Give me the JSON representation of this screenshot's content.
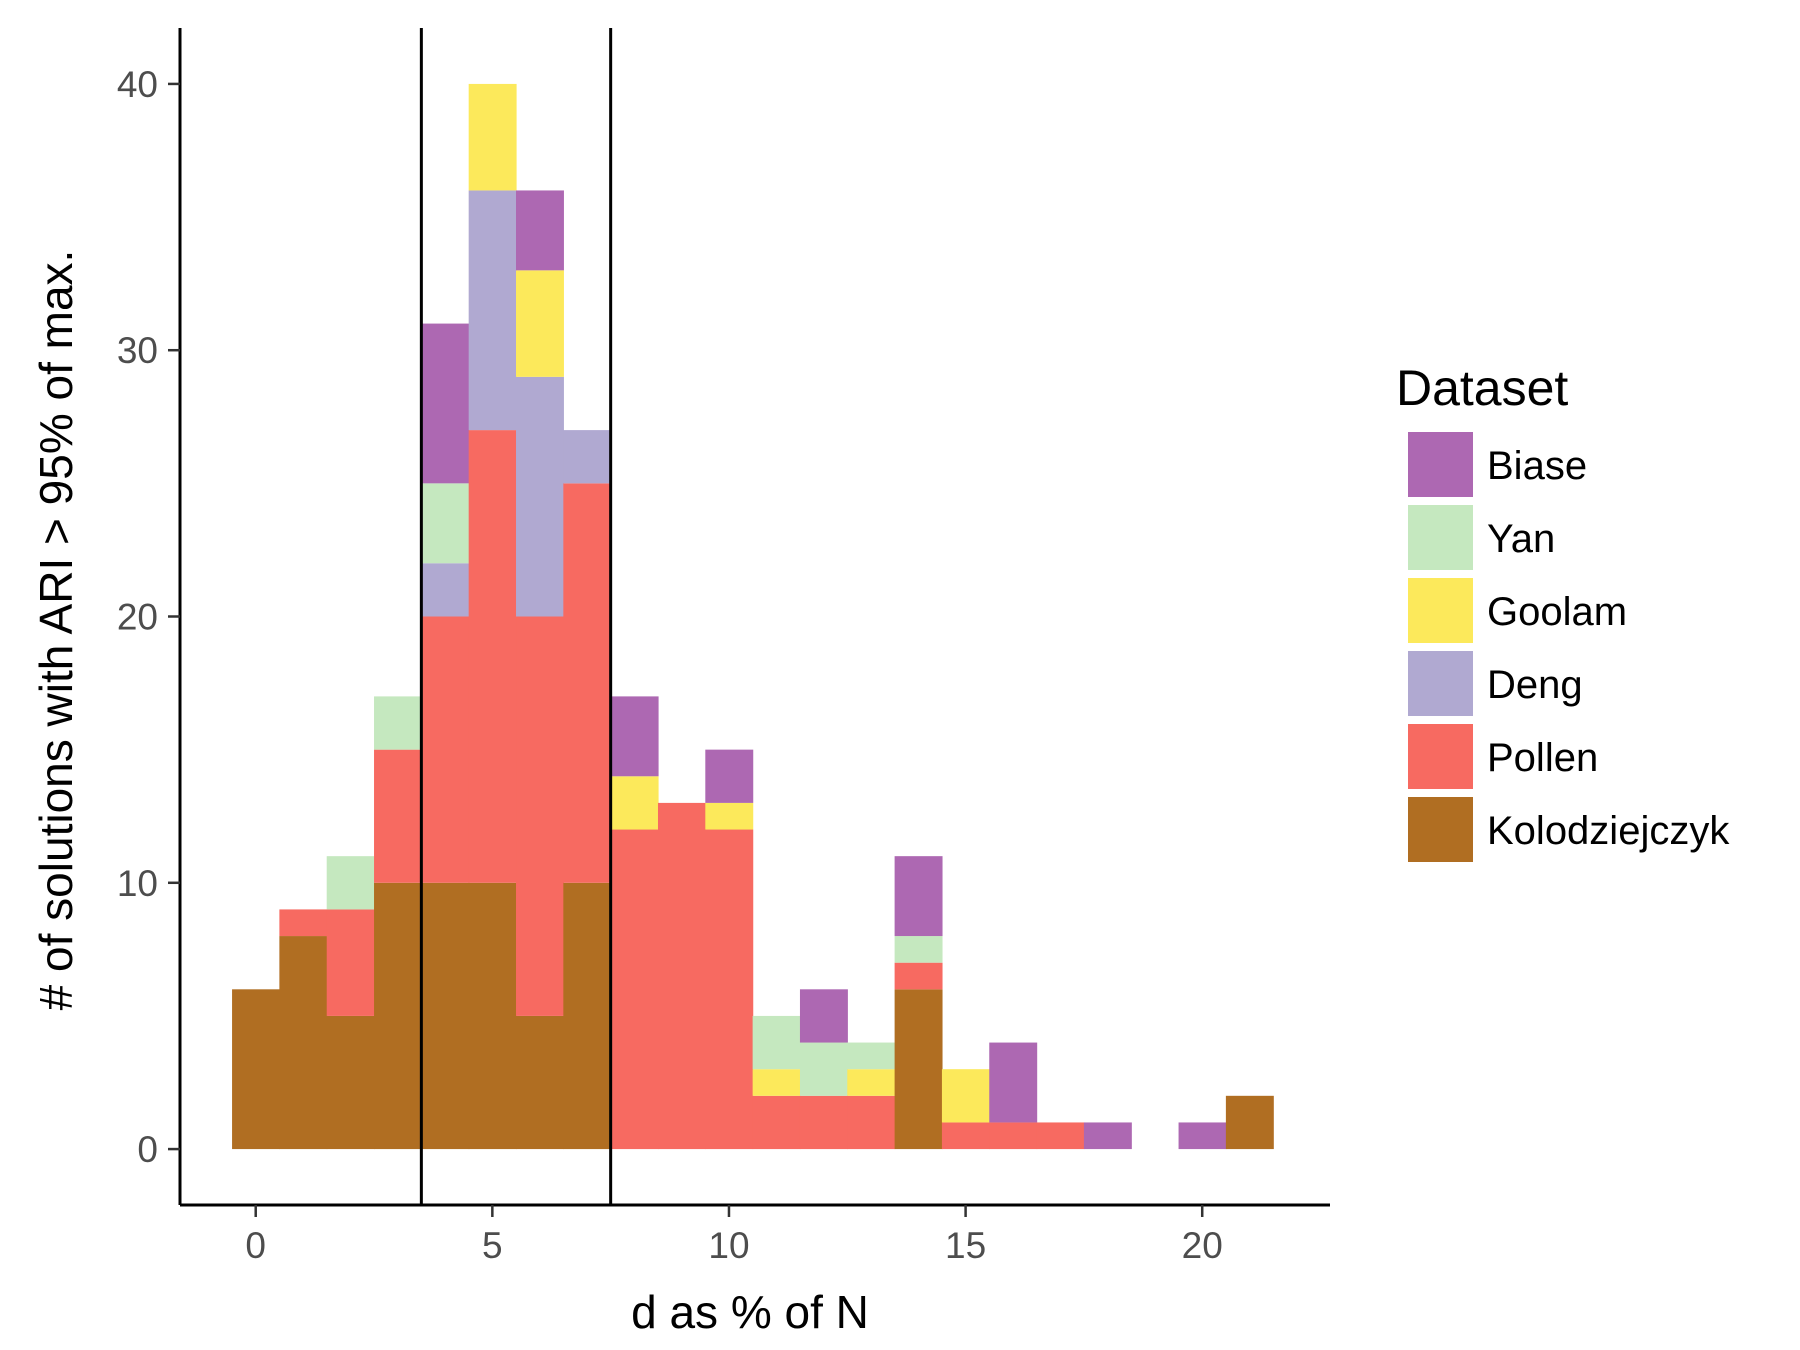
{
  "chart_data": {
    "type": "bar",
    "stacked": true,
    "title": "",
    "xlabel": "d as % of N",
    "ylabel": "# of solutions with ARI > 95% of max.",
    "x": [
      0,
      1,
      2,
      3,
      4,
      5,
      6,
      7,
      8,
      9,
      10,
      11,
      12,
      13,
      14,
      15,
      16,
      17,
      18,
      19,
      20,
      21
    ],
    "xlim": [
      -1.6,
      22.7
    ],
    "ylim": [
      -2.1,
      42.1
    ],
    "xticks": [
      0,
      5,
      10,
      15,
      20
    ],
    "yticks": [
      0,
      10,
      20,
      30,
      40
    ],
    "vlines": [
      3.5,
      7.5
    ],
    "grid": false,
    "legend_title": "Dataset",
    "legend_position": "right",
    "series": [
      {
        "name": "Kolodziejczyk",
        "color": "#B06E22",
        "values": [
          6,
          8,
          5,
          10,
          10,
          10,
          5,
          10,
          0,
          0,
          0,
          0,
          0,
          0,
          6,
          0,
          0,
          0,
          0,
          0,
          0,
          2
        ]
      },
      {
        "name": "Pollen",
        "color": "#F76A61",
        "values": [
          0,
          1,
          4,
          5,
          10,
          17,
          15,
          15,
          12,
          13,
          12,
          2,
          2,
          2,
          1,
          1,
          1,
          1,
          0,
          0,
          0,
          0
        ]
      },
      {
        "name": "Deng",
        "color": "#B0A9D1",
        "values": [
          0,
          0,
          0,
          0,
          2,
          9,
          9,
          2,
          0,
          0,
          0,
          0,
          0,
          0,
          0,
          0,
          0,
          0,
          0,
          0,
          0,
          0
        ]
      },
      {
        "name": "Goolam",
        "color": "#FCE95B",
        "values": [
          0,
          0,
          0,
          0,
          0,
          4,
          4,
          0,
          2,
          0,
          1,
          1,
          0,
          1,
          0,
          2,
          0,
          0,
          0,
          0,
          0,
          0
        ]
      },
      {
        "name": "Yan",
        "color": "#C5E8BF",
        "values": [
          0,
          0,
          2,
          2,
          3,
          0,
          0,
          0,
          0,
          0,
          0,
          2,
          2,
          1,
          1,
          0,
          0,
          0,
          0,
          0,
          0,
          0
        ]
      },
      {
        "name": "Biase",
        "color": "#AD68B2",
        "values": [
          0,
          0,
          0,
          0,
          6,
          0,
          3,
          0,
          3,
          0,
          2,
          0,
          2,
          0,
          3,
          0,
          3,
          0,
          1,
          0,
          1,
          0
        ]
      }
    ],
    "legend_order": [
      "Biase",
      "Yan",
      "Goolam",
      "Deng",
      "Pollen",
      "Kolodziejczyk"
    ]
  }
}
